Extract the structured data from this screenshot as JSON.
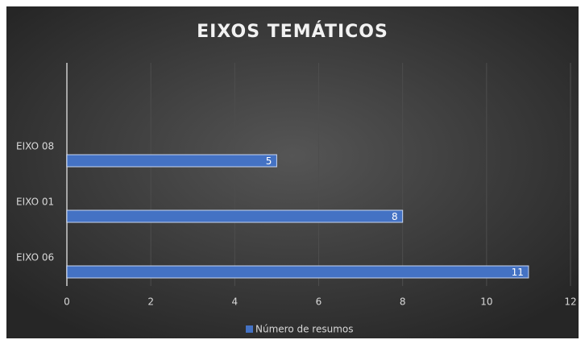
{
  "chart_data": {
    "type": "bar",
    "orientation": "horizontal",
    "title": "EIXOS TEMÁTICOS",
    "categories": [
      "EIXO 08",
      "EIXO 01",
      "EIXO 06"
    ],
    "series": [
      {
        "name": "Número de resumos",
        "color": "#4472c4",
        "values": [
          5,
          8,
          11
        ]
      }
    ],
    "xlim": [
      0,
      12
    ],
    "xticks": [
      0,
      2,
      4,
      6,
      8,
      10,
      12
    ],
    "grid": true,
    "legend": "bottom"
  }
}
